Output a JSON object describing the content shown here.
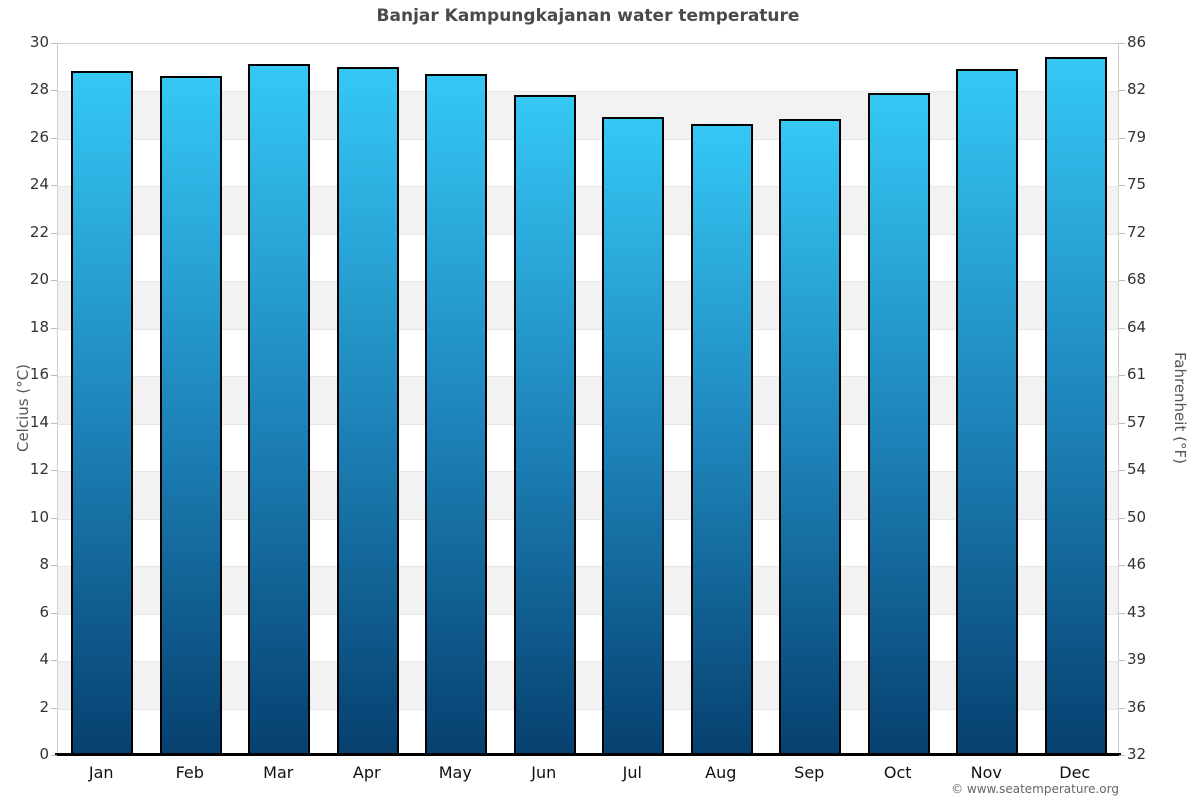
{
  "title": "Banjar Kampungkajanan water temperature",
  "footer": {
    "credit": "© www.seatemperature.org"
  },
  "y_axis_left": {
    "title": "Celcius (°C)",
    "ticks": [
      30,
      28,
      26,
      24,
      22,
      20,
      18,
      16,
      14,
      12,
      10,
      8,
      6,
      4,
      2,
      0
    ]
  },
  "y_axis_right": {
    "title": "Fahrenheit (°F)",
    "ticks": [
      86,
      82,
      79,
      75,
      72,
      68,
      64,
      61,
      57,
      54,
      50,
      46,
      43,
      39,
      36,
      32
    ]
  },
  "chart_data": {
    "type": "bar",
    "title": "Banjar Kampungkajanan water temperature",
    "categories": [
      "Jan",
      "Feb",
      "Mar",
      "Apr",
      "May",
      "Jun",
      "Jul",
      "Aug",
      "Sep",
      "Oct",
      "Nov",
      "Dec"
    ],
    "values": [
      28.8,
      28.6,
      29.1,
      29.0,
      28.7,
      27.8,
      26.9,
      26.6,
      26.8,
      27.9,
      28.9,
      29.4
    ],
    "values_unit": "°C",
    "xlabel": "",
    "ylabel_left": "Celcius (°C)",
    "ylabel_right": "Fahrenheit (°F)",
    "ylim": [
      0,
      30
    ],
    "grid_interval": 2,
    "legend": "none",
    "colors": {
      "bar_gradient_top": "#35c8f5",
      "bar_gradient_mid": "#1d82b8",
      "bar_gradient_bottom": "#06406f",
      "bar_border": "#000000",
      "band_alt": "#f2f2f2",
      "band_main": "#ffffff",
      "axis_line": "#cfcfcf",
      "baseline": "#000000",
      "title_text": "#4a4a4a",
      "tick_text": "#333333",
      "footer_text": "#666666"
    }
  }
}
